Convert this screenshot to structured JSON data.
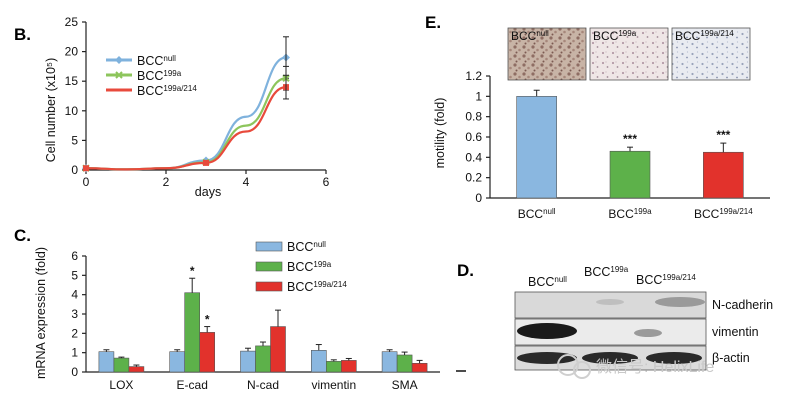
{
  "chart_data": [
    {
      "panel": "B.",
      "type": "line",
      "xlabel": "days",
      "ylabel": "Cell number (x10⁵)",
      "xlim": [
        0,
        6
      ],
      "ylim": [
        0,
        25
      ],
      "xticks": [
        0,
        2,
        4,
        6
      ],
      "yticks": [
        0,
        5,
        10,
        15,
        20,
        25
      ],
      "x": [
        0,
        1,
        2,
        3,
        4,
        5
      ],
      "series": [
        {
          "name": "BCC",
          "sup": "null",
          "color": "#7fb2dd",
          "marker": "diamond",
          "values": [
            0.3,
            0.1,
            0.3,
            1.6,
            9,
            19
          ],
          "errors": [
            0.3,
            0,
            0,
            0.3,
            0,
            3.5
          ]
        },
        {
          "name": "BCC",
          "sup": "199a",
          "color": "#8dc55c",
          "marker": "x",
          "values": [
            0.3,
            0.1,
            0.3,
            1.3,
            7.5,
            15.5
          ],
          "errors": [
            0.3,
            0,
            0,
            0.3,
            0,
            2
          ]
        },
        {
          "name": "BCC",
          "sup": "199a/214",
          "color": "#e84a3c",
          "marker": "square",
          "values": [
            0.3,
            0.1,
            0.3,
            1.2,
            6.5,
            14
          ],
          "errors": [
            0.3,
            0,
            0,
            0.3,
            0,
            2
          ]
        }
      ],
      "legend": "top-left"
    },
    {
      "panel": "C.",
      "type": "bar",
      "ylabel": "mRNA expression (fold)",
      "ylim": [
        0,
        6
      ],
      "yticks": [
        0,
        1,
        2,
        3,
        4,
        5,
        6
      ],
      "categories": [
        "LOX",
        "E-cad",
        "N-cad",
        "vimentin",
        "SMA"
      ],
      "series": [
        {
          "name": "BCC",
          "sup": "null",
          "color": "#8ab7e0",
          "values": [
            1.05,
            1.05,
            1.08,
            1.12,
            1.05
          ],
          "errors": [
            0.1,
            0.1,
            0.15,
            0.3,
            0.1
          ]
        },
        {
          "name": "BCC",
          "sup": "199a",
          "color": "#5db14a",
          "values": [
            0.72,
            4.1,
            1.35,
            0.55,
            0.88
          ],
          "errors": [
            0.05,
            0.75,
            0.2,
            0.08,
            0.15
          ]
        },
        {
          "name": "BCC",
          "sup": "199a/214",
          "color": "#e2322c",
          "values": [
            0.28,
            2.05,
            2.35,
            0.6,
            0.45
          ],
          "errors": [
            0.08,
            0.3,
            0.85,
            0.1,
            0.15
          ]
        }
      ],
      "significance": [
        {
          "category": "E-cad",
          "series": 1,
          "text": "*"
        },
        {
          "category": "E-cad",
          "series": 2,
          "text": "*"
        }
      ],
      "legend": "top-right"
    },
    {
      "panel": "E.",
      "type": "bar",
      "ylabel": "motility (fold)",
      "ylim": [
        0,
        1.2
      ],
      "yticks": [
        "0",
        "0.2",
        "0.4",
        "0.6",
        "0.8",
        "1",
        "1.2"
      ],
      "categories": [
        {
          "name": "BCC",
          "sup": "null"
        },
        {
          "name": "BCC",
          "sup": "199a"
        },
        {
          "name": "BCC",
          "sup": "199a/214"
        }
      ],
      "values": [
        1.0,
        0.46,
        0.45
      ],
      "errors": [
        0.06,
        0.04,
        0.09
      ],
      "colors": [
        "#8ab7e0",
        "#5db14a",
        "#e2322c"
      ],
      "significance": [
        "",
        "***",
        "***"
      ],
      "micrographs": [
        {
          "name": "BCC",
          "sup": "null"
        },
        {
          "name": "BCC",
          "sup": "199a"
        },
        {
          "name": "BCC",
          "sup": "199a/214"
        }
      ]
    }
  ],
  "western_blot": {
    "panel": "D.",
    "lanes": [
      {
        "name": "BCC",
        "sup": "null"
      },
      {
        "name": "BCC",
        "sup": "199a"
      },
      {
        "name": "BCC",
        "sup": "199a/214"
      }
    ],
    "rows": [
      "N-cadherin",
      "vimentin",
      "β-actin"
    ]
  },
  "watermark": "微信号: HelixLife"
}
